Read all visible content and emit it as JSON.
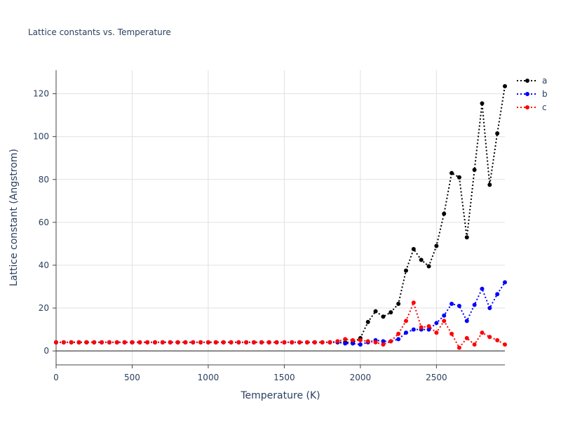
{
  "chart_data": {
    "type": "line",
    "title": "Lattice constants vs. Temperature",
    "xlabel": "Temperature (K)",
    "ylabel": "Lattice constant (Angstrom)",
    "xlim": [
      0,
      2950
    ],
    "ylim": [
      -6.5,
      131
    ],
    "x_ticks": [
      0,
      500,
      1000,
      1500,
      2000,
      2500
    ],
    "y_ticks": [
      0,
      20,
      40,
      60,
      80,
      100,
      120
    ],
    "grid": true,
    "legend_position": "top-right",
    "x": [
      0,
      50,
      100,
      150,
      200,
      250,
      300,
      350,
      400,
      450,
      500,
      550,
      600,
      650,
      700,
      750,
      800,
      850,
      900,
      950,
      1000,
      1050,
      1100,
      1150,
      1200,
      1250,
      1300,
      1350,
      1400,
      1450,
      1500,
      1550,
      1600,
      1650,
      1700,
      1750,
      1800,
      1850,
      1900,
      1950,
      2000,
      2050,
      2100,
      2150,
      2200,
      2250,
      2300,
      2350,
      2400,
      2450,
      2500,
      2550,
      2600,
      2650,
      2700,
      2750,
      2800,
      2850,
      2900,
      2950
    ],
    "series": [
      {
        "name": "a",
        "color": "#000000",
        "values": [
          4,
          4,
          4,
          4,
          4,
          4,
          4,
          4,
          4,
          4,
          4,
          4,
          4,
          4,
          4,
          4,
          4,
          4,
          4,
          4,
          4,
          4,
          4,
          4,
          4,
          4,
          4,
          4,
          4,
          4,
          4,
          4,
          4,
          4,
          4,
          4,
          4,
          4,
          4,
          4,
          6,
          13.5,
          18.5,
          16,
          18,
          22,
          37.5,
          47.5,
          42.5,
          39.5,
          49,
          64,
          83,
          81,
          53,
          84.5,
          115.5,
          77.5,
          101.5,
          123.5
        ]
      },
      {
        "name": "b",
        "color": "#0000ff",
        "values": [
          4,
          4,
          4,
          4,
          4,
          4,
          4,
          4,
          4,
          4,
          4,
          4,
          4,
          4,
          4,
          4,
          4,
          4,
          4,
          4,
          4,
          4,
          4,
          4,
          4,
          4,
          4,
          4,
          4,
          4,
          4,
          4,
          4,
          4,
          4,
          4,
          4,
          4,
          3.5,
          3.5,
          3,
          4,
          5,
          4.5,
          4.5,
          5.5,
          8.5,
          10,
          10,
          10,
          13,
          16.5,
          22,
          21,
          14,
          21.5,
          29,
          20,
          26.5,
          32
        ]
      },
      {
        "name": "c",
        "color": "#ff0000",
        "values": [
          4,
          4,
          4,
          4,
          4,
          4,
          4,
          4,
          4,
          4,
          4,
          4,
          4,
          4,
          4,
          4,
          4,
          4,
          4,
          4,
          4,
          4,
          4,
          4,
          4,
          4,
          4,
          4,
          4,
          4,
          4,
          4,
          4,
          4,
          4,
          4,
          4,
          4.5,
          5.5,
          5,
          5,
          4.5,
          4,
          3,
          4.5,
          8,
          14,
          22.5,
          11,
          11.5,
          8.5,
          14,
          8,
          1.5,
          6,
          3,
          8.5,
          6.5,
          5,
          3
        ]
      }
    ]
  }
}
